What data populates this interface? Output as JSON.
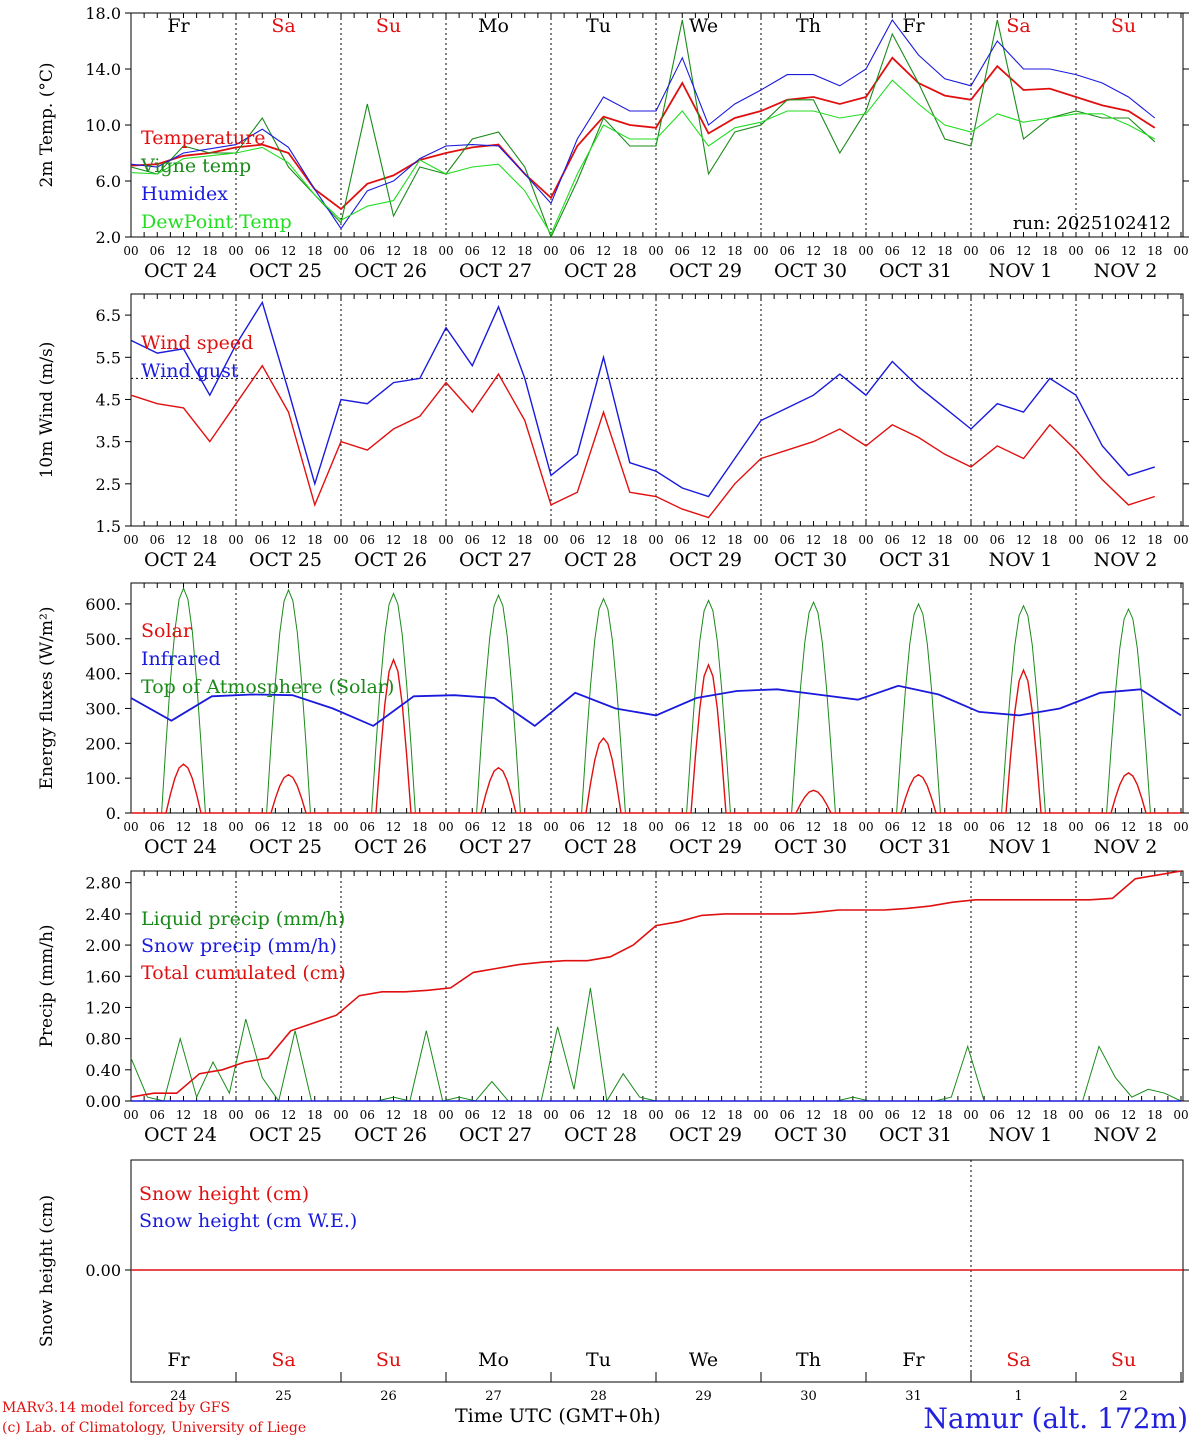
{
  "footer": {
    "model_line": "MARv3.14 model forced by GFS",
    "credit_line": "(c) Lab. of Climatology, University of Liege",
    "time_label": "Time UTC (GMT+0h)",
    "station": "Namur (alt. 172m)"
  },
  "colors": {
    "red": "#e01010",
    "green_dark": "#1a8a1a",
    "green_light": "#22dd22",
    "blue": "#1a1add",
    "black": "#000000"
  },
  "timeline": {
    "hour_ticks": [
      "00",
      "06",
      "12",
      "18"
    ],
    "day_labels": [
      "OCT 24",
      "OCT 25",
      "OCT 26",
      "OCT 27",
      "OCT 28",
      "OCT 29",
      "OCT 30",
      "OCT 31",
      "NOV 1",
      "NOV 2"
    ],
    "weekdays": [
      {
        "label": "Fr",
        "weekend": false
      },
      {
        "label": "Sa",
        "weekend": true
      },
      {
        "label": "Su",
        "weekend": true
      },
      {
        "label": "Mo",
        "weekend": false
      },
      {
        "label": "Tu",
        "weekend": false
      },
      {
        "label": "We",
        "weekend": false
      },
      {
        "label": "Th",
        "weekend": false
      },
      {
        "label": "Fr",
        "weekend": false
      },
      {
        "label": "Sa",
        "weekend": true
      },
      {
        "label": "Su",
        "weekend": true
      }
    ],
    "day_numbers": [
      "24",
      "25",
      "26",
      "27",
      "28",
      "29",
      "30",
      "31",
      "1",
      "2"
    ]
  },
  "chart_data": [
    {
      "id": "temp",
      "type": "line",
      "ylabel": "2m Temp. (°C)",
      "ylim": [
        2,
        18
      ],
      "yticks": [
        "2.0",
        "6.0",
        "10.0",
        "14.0",
        "18.0"
      ],
      "annotation": "run: 2025102412",
      "x_hours": [
        0,
        6,
        12,
        18,
        24,
        30,
        36,
        42,
        48,
        54,
        60,
        66,
        72,
        78,
        84,
        90,
        96,
        102,
        108,
        114,
        120,
        126,
        132,
        138,
        144,
        150,
        156,
        162,
        168,
        174,
        180,
        186,
        192,
        198,
        204,
        210,
        216,
        222,
        228,
        234
      ],
      "series": [
        {
          "name": "Temperature",
          "color": "red",
          "values": [
            7.1,
            7.2,
            7.8,
            8.0,
            8.4,
            8.6,
            8.0,
            5.4,
            4.0,
            5.8,
            6.4,
            7.5,
            8.0,
            8.4,
            8.6,
            6.5,
            4.8,
            8.5,
            10.6,
            10.0,
            9.8,
            13.0,
            9.4,
            10.5,
            11.0,
            11.8,
            12.0,
            11.5,
            12.0,
            14.8,
            13.0,
            12.1,
            11.8,
            14.2,
            12.5,
            12.6,
            12.0,
            11.4,
            11.0,
            9.8
          ]
        },
        {
          "name": "Vigne temp",
          "color": "green_dark",
          "values": [
            7.0,
            6.5,
            8.5,
            8.0,
            8.0,
            10.5,
            7.0,
            5.0,
            3.0,
            11.5,
            3.5,
            7.0,
            6.5,
            9.0,
            9.5,
            7.0,
            2.0,
            6.0,
            10.5,
            8.5,
            8.5,
            17.5,
            6.5,
            9.5,
            10.0,
            11.8,
            11.8,
            8.0,
            11.0,
            16.5,
            13.0,
            9.0,
            8.5,
            17.5,
            9.0,
            10.5,
            11.0,
            10.5,
            10.5,
            8.8
          ]
        },
        {
          "name": "Humidex",
          "color": "blue",
          "values": [
            7.2,
            7.0,
            8.0,
            8.3,
            8.6,
            9.7,
            8.4,
            5.4,
            2.6,
            5.3,
            6.0,
            7.6,
            8.5,
            8.6,
            8.5,
            6.5,
            4.4,
            9.0,
            12.0,
            11.0,
            11.0,
            14.8,
            10.0,
            11.5,
            12.5,
            13.6,
            13.6,
            12.8,
            14.0,
            17.5,
            15.0,
            13.3,
            12.8,
            16.0,
            14.0,
            14.0,
            13.6,
            13.0,
            12.0,
            10.5
          ]
        },
        {
          "name": "DewPoint Temp",
          "color": "green_light",
          "values": [
            6.6,
            6.5,
            7.6,
            7.8,
            8.0,
            8.4,
            7.3,
            5.0,
            3.2,
            4.2,
            4.6,
            7.5,
            6.5,
            7.0,
            7.2,
            5.3,
            2.2,
            6.5,
            10.0,
            9.0,
            9.0,
            11.0,
            8.5,
            9.8,
            10.2,
            11.0,
            11.0,
            10.5,
            10.8,
            13.2,
            11.5,
            10.0,
            9.5,
            10.8,
            10.2,
            10.5,
            10.8,
            10.8,
            10.0,
            9.0
          ]
        }
      ]
    },
    {
      "id": "wind",
      "type": "line",
      "ylabel": "10m Wind (m/s)",
      "ylim": [
        1.5,
        7.0
      ],
      "yticks": [
        "1.5",
        "2.5",
        "3.5",
        "4.5",
        "5.5",
        "6.5"
      ],
      "reference_line": 5.0,
      "x_hours": [
        0,
        6,
        12,
        18,
        24,
        30,
        36,
        42,
        48,
        54,
        60,
        66,
        72,
        78,
        84,
        90,
        96,
        102,
        108,
        114,
        120,
        126,
        132,
        138,
        144,
        150,
        156,
        162,
        168,
        174,
        180,
        186,
        192,
        198,
        204,
        210,
        216,
        222,
        228,
        234
      ],
      "series": [
        {
          "name": "Wind speed",
          "color": "red",
          "values": [
            4.6,
            4.4,
            4.3,
            3.5,
            4.4,
            5.3,
            4.2,
            2.0,
            3.5,
            3.3,
            3.8,
            4.1,
            4.9,
            4.2,
            5.1,
            4.0,
            2.0,
            2.3,
            4.2,
            2.3,
            2.2,
            1.9,
            1.7,
            2.5,
            3.1,
            3.3,
            3.5,
            3.8,
            3.4,
            3.9,
            3.6,
            3.2,
            2.9,
            3.4,
            3.1,
            3.9,
            3.3,
            2.6,
            2.0,
            2.2
          ]
        },
        {
          "name": "Wind gust",
          "color": "blue",
          "values": [
            5.9,
            5.6,
            5.7,
            4.6,
            5.8,
            6.8,
            4.7,
            2.5,
            4.5,
            4.4,
            4.9,
            5.0,
            6.2,
            5.3,
            6.7,
            5.0,
            2.7,
            3.2,
            5.5,
            3.0,
            2.8,
            2.4,
            2.2,
            3.1,
            4.0,
            4.3,
            4.6,
            5.1,
            4.6,
            5.4,
            4.8,
            4.3,
            3.8,
            4.4,
            4.2,
            5.0,
            4.6,
            3.4,
            2.7,
            2.9
          ]
        }
      ]
    },
    {
      "id": "energy",
      "type": "line",
      "ylabel": "Energy fluxes (W/m²)",
      "ylim": [
        0,
        660
      ],
      "yticks": [
        "0.",
        "100.",
        "200.",
        "300.",
        "400.",
        "500.",
        "600."
      ],
      "series": [
        {
          "name": "Solar",
          "color": "red",
          "day_peaks": [
            140,
            110,
            440,
            130,
            215,
            425,
            65,
            110,
            410,
            115
          ]
        },
        {
          "name": "Infrared",
          "color": "blue",
          "values": [
            330,
            265,
            335,
            340,
            338,
            300,
            250,
            335,
            338,
            330,
            250,
            345,
            300,
            280,
            330,
            350,
            355,
            340,
            325,
            365,
            340,
            290,
            280,
            300,
            345,
            355,
            280
          ]
        },
        {
          "name": "Top of Atmosphere (Solar)",
          "color": "green_dark",
          "day_peaks": [
            645,
            640,
            630,
            625,
            615,
            610,
            605,
            600,
            595,
            585
          ]
        }
      ]
    },
    {
      "id": "precip",
      "type": "line",
      "ylabel": "Precip (mm/h)",
      "ylim": [
        0,
        2.95
      ],
      "yticks": [
        "0.00",
        "0.40",
        "0.80",
        "1.20",
        "1.60",
        "2.00",
        "2.40",
        "2.80"
      ],
      "series": [
        {
          "name": "Liquid precip (mm/h)",
          "color": "green_dark",
          "values": [
            0.55,
            0.05,
            0.0,
            0.8,
            0.05,
            0.5,
            0.1,
            1.05,
            0.3,
            0.0,
            0.9,
            0.0,
            0.0,
            0.0,
            0.0,
            0.0,
            0.05,
            0.0,
            0.9,
            0.0,
            0.05,
            0.0,
            0.25,
            0.0,
            0.0,
            0.0,
            0.95,
            0.15,
            1.45,
            0.0,
            0.35,
            0.05,
            0.0,
            0.0,
            0.0,
            0.0,
            0.0,
            0.0,
            0.0,
            0.0,
            0.0,
            0.0,
            0.0,
            0.0,
            0.05,
            0.0,
            0.0,
            0.0,
            0.0,
            0.0,
            0.05,
            0.7,
            0.0,
            0.0,
            0.0,
            0.0,
            0.0,
            0.0,
            0.0,
            0.7,
            0.3,
            0.05,
            0.15,
            0.1,
            0.0
          ]
        },
        {
          "name": "Snow precip (mm/h)",
          "color": "blue",
          "values": [
            0.0,
            0.0
          ]
        },
        {
          "name": "Total cumulated (cm)",
          "color": "red",
          "values": [
            0.05,
            0.1,
            0.1,
            0.35,
            0.4,
            0.5,
            0.55,
            0.9,
            1.0,
            1.1,
            1.35,
            1.4,
            1.4,
            1.42,
            1.45,
            1.65,
            1.7,
            1.75,
            1.78,
            1.8,
            1.8,
            1.85,
            2.0,
            2.25,
            2.3,
            2.38,
            2.4,
            2.4,
            2.4,
            2.4,
            2.42,
            2.45,
            2.45,
            2.45,
            2.47,
            2.5,
            2.55,
            2.58,
            2.58,
            2.58,
            2.58,
            2.58,
            2.58,
            2.6,
            2.85,
            2.9,
            2.95
          ]
        }
      ]
    },
    {
      "id": "snow",
      "type": "line",
      "ylabel": "Snow height (cm)",
      "yticks": [
        "0.00"
      ],
      "series": [
        {
          "name": "Snow height (cm)",
          "color": "red",
          "values": [
            0,
            0
          ]
        },
        {
          "name": "Snow height (cm W.E.)",
          "color": "blue",
          "values": [
            0,
            0
          ]
        }
      ]
    }
  ]
}
